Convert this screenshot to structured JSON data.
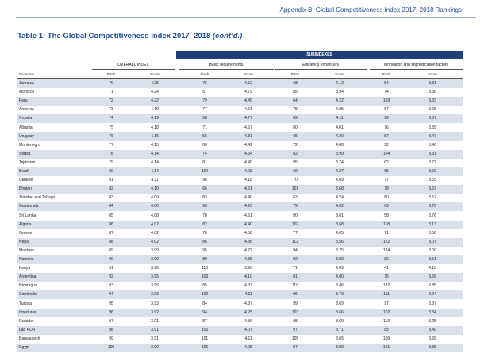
{
  "header": {
    "text": "Appendix B: Global Competitiveness Index 2017–2018 Rankings"
  },
  "title": {
    "text": "Table 1: The Global Competitiveness Index 2017–2018",
    "suffix": "(cont’d.)"
  },
  "table": {
    "subindex_label": "SUBINDEXES",
    "groups": [
      "OVERALL INDEX",
      "Basic requirements",
      "Efficiency enhancers",
      "Innovation and sophistication factors"
    ],
    "economy_label": "Economy",
    "rank_label": "Rank",
    "score_label": "Score",
    "rows": [
      [
        "Jamaica",
        "70",
        "4.25",
        "76",
        "4.52",
        "68",
        "4.12",
        "54",
        "3.81"
      ],
      [
        "Morocco",
        "71",
        "4.24",
        "57",
        "4.79",
        "85",
        "3.94",
        "74",
        "3.56"
      ],
      [
        "Peru",
        "72",
        "4.22",
        "79",
        "4.45",
        "64",
        "4.22",
        "103",
        "3.33"
      ],
      [
        "Armenia",
        "73",
        "4.19",
        "77",
        "4.51",
        "78",
        "4.05",
        "67",
        "3.65"
      ],
      [
        "Croatia",
        "74",
        "4.19",
        "58",
        "4.77",
        "69",
        "4.11",
        "99",
        "3.37"
      ],
      [
        "Albania",
        "75",
        "4.18",
        "71",
        "4.57",
        "80",
        "4.01",
        "76",
        "3.55"
      ],
      [
        "Uruguay",
        "76",
        "4.15",
        "56",
        "4.81",
        "65",
        "4.20",
        "87",
        "3.47"
      ],
      [
        "Montenegro",
        "77",
        "4.15",
        "80",
        "4.42",
        "72",
        "4.08",
        "92",
        "3.40"
      ],
      [
        "Serbia",
        "78",
        "4.14",
        "74",
        "4.54",
        "82",
        "3.99",
        "104",
        "3.31"
      ],
      [
        "Tajikistan",
        "79",
        "4.14",
        "81",
        "4.40",
        "95",
        "3.74",
        "62",
        "3.72"
      ],
      [
        "Brazil",
        "80",
        "4.14",
        "104",
        "4.08",
        "60",
        "4.27",
        "65",
        "3.66"
      ],
      [
        "Ukraine",
        "81",
        "4.11",
        "96",
        "4.18",
        "70",
        "4.09",
        "77",
        "3.55"
      ],
      [
        "Bhutan",
        "82",
        "4.10",
        "66",
        "4.61",
        "101",
        "3.68",
        "78",
        "3.53"
      ],
      [
        "Trinidad and Tobago",
        "83",
        "4.09",
        "83",
        "4.40",
        "63",
        "4.24",
        "80",
        "3.52"
      ],
      [
        "Guatemala",
        "84",
        "4.08",
        "93",
        "4.26",
        "79",
        "4.02",
        "63",
        "3.70"
      ],
      [
        "Sri Lanka",
        "85",
        "4.08",
        "78",
        "4.51",
        "90",
        "3.81",
        "58",
        "3.76"
      ],
      [
        "Algeria",
        "86",
        "4.07",
        "82",
        "4.40",
        "102",
        "3.68",
        "118",
        "3.13"
      ],
      [
        "Greece",
        "87",
        "4.02",
        "70",
        "4.58",
        "77",
        "4.05",
        "71",
        "3.60"
      ],
      [
        "Nepal",
        "88",
        "4.02",
        "86",
        "4.36",
        "112",
        "3.56",
        "122",
        "3.07"
      ],
      [
        "Moldova",
        "89",
        "3.99",
        "95",
        "4.22",
        "94",
        "3.75",
        "124",
        "3.00"
      ],
      [
        "Namibia",
        "90",
        "3.99",
        "89",
        "4.35",
        "92",
        "3.80",
        "82",
        "3.51"
      ],
      [
        "Kenya",
        "91",
        "3.98",
        "110",
        "3.90",
        "71",
        "4.09",
        "41",
        "4.10"
      ],
      [
        "Argentina",
        "92",
        "3.95",
        "103",
        "4.10",
        "81",
        "4.00",
        "75",
        "3.56"
      ],
      [
        "Nicaragua",
        "93",
        "3.95",
        "85",
        "4.37",
        "118",
        "3.46",
        "132",
        "2.85"
      ],
      [
        "Cambodia",
        "94",
        "3.93",
        "102",
        "4.11",
        "96",
        "3.73",
        "111",
        "3.24"
      ],
      [
        "Tunisia",
        "95",
        "3.93",
        "84",
        "4.37",
        "99",
        "3.69",
        "97",
        "3.37"
      ],
      [
        "Honduras",
        "96",
        "3.92",
        "94",
        "4.25",
        "103",
        "3.66",
        "102",
        "3.34"
      ],
      [
        "Ecuador",
        "97",
        "3.91",
        "87",
        "4.36",
        "98",
        "3.69",
        "110",
        "3.25"
      ],
      [
        "Lao PDR",
        "98",
        "3.91",
        "105",
        "4.07",
        "97",
        "3.71",
        "85",
        "3.49"
      ],
      [
        "Bangladesh",
        "99",
        "3.91",
        "101",
        "4.11",
        "105",
        "3.65",
        "106",
        "3.28"
      ],
      [
        "Egypt",
        "100",
        "3.90",
        "106",
        "4.05",
        "87",
        "3.90",
        "101",
        "3.35"
      ]
    ]
  }
}
